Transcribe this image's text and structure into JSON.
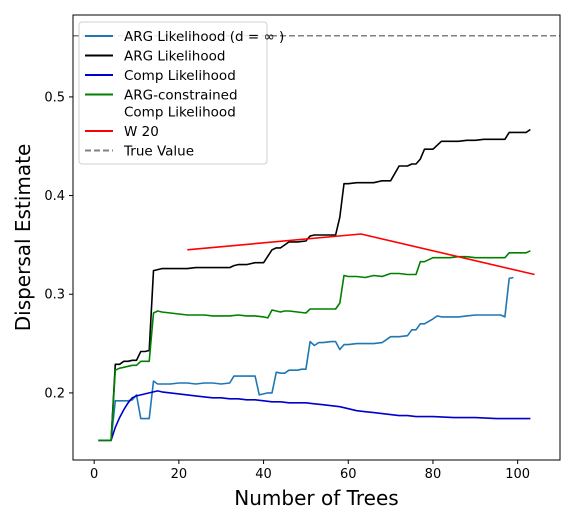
{
  "chart_data": {
    "type": "line",
    "xlabel": "Number of Trees",
    "ylabel": "Dispersal Estimate",
    "xlim": [
      -5,
      110
    ],
    "ylim": [
      0.132,
      0.583
    ],
    "xticks": [
      0,
      20,
      40,
      60,
      80,
      100
    ],
    "yticks": [
      0.2,
      0.3,
      0.4,
      0.5
    ],
    "legend_position": "top-left",
    "grid": false,
    "series": [
      {
        "name": "ARG Likelihood (d = ∞ )",
        "color": "#1f77b4",
        "dash": "solid",
        "x": [
          1,
          2,
          3,
          4,
          5,
          6,
          7,
          8,
          9,
          10,
          11,
          12,
          13,
          14,
          15,
          16,
          18,
          20,
          22,
          24,
          26,
          28,
          30,
          32,
          33,
          34,
          36,
          38,
          39,
          40,
          41,
          42,
          43,
          44,
          45,
          46,
          48,
          49,
          50,
          51,
          52,
          53,
          54,
          56,
          57,
          58,
          59,
          60,
          62,
          64,
          66,
          68,
          70,
          72,
          74,
          75,
          76,
          77,
          78,
          80,
          81,
          82,
          84,
          86,
          88,
          90,
          92,
          94,
          96,
          97,
          98,
          99
        ],
        "y": [
          0.152,
          0.152,
          0.152,
          0.152,
          0.192,
          0.192,
          0.192,
          0.192,
          0.193,
          0.198,
          0.174,
          0.174,
          0.174,
          0.212,
          0.209,
          0.209,
          0.209,
          0.21,
          0.21,
          0.209,
          0.21,
          0.21,
          0.209,
          0.21,
          0.217,
          0.217,
          0.217,
          0.217,
          0.198,
          0.199,
          0.2,
          0.2,
          0.221,
          0.22,
          0.22,
          0.223,
          0.223,
          0.224,
          0.224,
          0.252,
          0.248,
          0.251,
          0.251,
          0.252,
          0.252,
          0.244,
          0.249,
          0.249,
          0.25,
          0.25,
          0.25,
          0.251,
          0.257,
          0.257,
          0.258,
          0.264,
          0.264,
          0.27,
          0.27,
          0.275,
          0.278,
          0.277,
          0.277,
          0.277,
          0.278,
          0.279,
          0.279,
          0.279,
          0.279,
          0.277,
          0.316,
          0.317
        ]
      },
      {
        "name": "ARG Likelihood",
        "color": "#000000",
        "dash": "solid",
        "x": [
          1,
          2,
          3,
          4,
          5,
          6,
          7,
          8,
          9,
          10,
          11,
          12,
          13,
          14,
          15,
          16,
          18,
          20,
          22,
          24,
          26,
          28,
          30,
          32,
          33,
          34,
          36,
          38,
          40,
          42,
          43,
          44,
          46,
          48,
          50,
          51,
          52,
          53,
          54,
          56,
          57,
          58,
          59,
          60,
          62,
          64,
          66,
          68,
          70,
          72,
          74,
          75,
          76,
          77,
          78,
          80,
          82,
          84,
          86,
          88,
          90,
          92,
          94,
          96,
          97,
          98,
          100,
          102,
          103
        ],
        "y": [
          0.152,
          0.152,
          0.152,
          0.152,
          0.229,
          0.229,
          0.232,
          0.232,
          0.233,
          0.233,
          0.242,
          0.242,
          0.243,
          0.324,
          0.325,
          0.326,
          0.326,
          0.326,
          0.326,
          0.327,
          0.327,
          0.327,
          0.327,
          0.327,
          0.329,
          0.33,
          0.33,
          0.332,
          0.332,
          0.345,
          0.347,
          0.347,
          0.353,
          0.353,
          0.354,
          0.359,
          0.36,
          0.36,
          0.36,
          0.36,
          0.36,
          0.378,
          0.412,
          0.412,
          0.413,
          0.413,
          0.413,
          0.415,
          0.415,
          0.43,
          0.43,
          0.432,
          0.432,
          0.437,
          0.447,
          0.447,
          0.455,
          0.455,
          0.455,
          0.456,
          0.456,
          0.457,
          0.457,
          0.457,
          0.457,
          0.464,
          0.464,
          0.464,
          0.467
        ]
      },
      {
        "name": "Comp Likelihood",
        "color": "#0000cd",
        "dash": "solid",
        "x": [
          1,
          2,
          3,
          4,
          5,
          6,
          7,
          8,
          9,
          10,
          11,
          12,
          13,
          14,
          15,
          16,
          18,
          20,
          22,
          24,
          26,
          28,
          30,
          32,
          34,
          36,
          38,
          40,
          42,
          44,
          46,
          48,
          50,
          52,
          54,
          56,
          58,
          60,
          62,
          64,
          66,
          68,
          70,
          72,
          74,
          76,
          78,
          80,
          85,
          90,
          95,
          100,
          103
        ],
        "y": [
          0.152,
          0.152,
          0.152,
          0.152,
          0.165,
          0.175,
          0.183,
          0.19,
          0.195,
          0.197,
          0.198,
          0.199,
          0.2,
          0.201,
          0.202,
          0.201,
          0.2,
          0.199,
          0.198,
          0.197,
          0.196,
          0.195,
          0.195,
          0.194,
          0.194,
          0.193,
          0.193,
          0.192,
          0.191,
          0.191,
          0.19,
          0.19,
          0.19,
          0.189,
          0.188,
          0.187,
          0.186,
          0.184,
          0.182,
          0.181,
          0.18,
          0.179,
          0.178,
          0.177,
          0.177,
          0.176,
          0.176,
          0.176,
          0.175,
          0.175,
          0.174,
          0.174,
          0.174
        ]
      },
      {
        "name": "ARG-constrained\nComp Likelihood",
        "color": "#008000",
        "dash": "solid",
        "x": [
          1,
          2,
          3,
          4,
          5,
          6,
          7,
          8,
          9,
          10,
          11,
          12,
          13,
          14,
          15,
          16,
          18,
          20,
          22,
          24,
          26,
          28,
          30,
          32,
          34,
          36,
          38,
          40,
          41,
          42,
          44,
          45,
          46,
          48,
          50,
          51,
          52,
          54,
          56,
          57,
          58,
          59,
          60,
          62,
          64,
          66,
          68,
          70,
          72,
          74,
          76,
          77,
          78,
          80,
          82,
          84,
          86,
          88,
          90,
          92,
          94,
          96,
          97,
          98,
          100,
          102,
          103
        ],
        "y": [
          0.152,
          0.152,
          0.152,
          0.152,
          0.223,
          0.225,
          0.226,
          0.227,
          0.228,
          0.228,
          0.232,
          0.232,
          0.232,
          0.281,
          0.283,
          0.282,
          0.281,
          0.28,
          0.279,
          0.279,
          0.279,
          0.278,
          0.278,
          0.278,
          0.279,
          0.278,
          0.278,
          0.277,
          0.276,
          0.284,
          0.282,
          0.283,
          0.283,
          0.282,
          0.281,
          0.285,
          0.285,
          0.285,
          0.285,
          0.285,
          0.291,
          0.319,
          0.318,
          0.318,
          0.317,
          0.319,
          0.318,
          0.321,
          0.321,
          0.32,
          0.32,
          0.333,
          0.333,
          0.337,
          0.337,
          0.337,
          0.338,
          0.338,
          0.337,
          0.337,
          0.337,
          0.337,
          0.337,
          0.342,
          0.342,
          0.342,
          0.344
        ]
      },
      {
        "name": "W 20",
        "color": "#ff0000",
        "dash": "solid",
        "x": [
          22,
          63,
          104
        ],
        "y": [
          0.345,
          0.361,
          0.32
        ]
      },
      {
        "name": "True Value",
        "color": "#808080",
        "dash": "dashed",
        "hline": 0.562
      }
    ]
  }
}
